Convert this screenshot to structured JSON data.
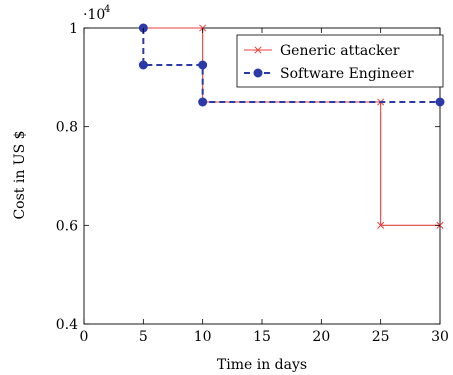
{
  "chart_data": {
    "type": "line",
    "xlabel": "Time in days",
    "ylabel": "Cost in US $",
    "y_multiplier": "·10",
    "y_multiplier_exp": "4",
    "xlim": [
      0,
      30
    ],
    "ylim": [
      0.4,
      1.0
    ],
    "x_ticks": [
      0,
      5,
      10,
      15,
      20,
      25,
      30
    ],
    "x_tick_labels": [
      "0",
      "5",
      "10",
      "15",
      "20",
      "25",
      "30"
    ],
    "y_ticks": [
      0.4,
      0.6,
      0.8,
      1.0
    ],
    "y_tick_labels": [
      "0.4",
      "0.6",
      "0.8",
      "1"
    ],
    "legend_position": "top-right",
    "grid": false,
    "series": [
      {
        "name": "Generic attacker",
        "color": "#e8413c",
        "marker": "x",
        "dashed": false,
        "x": [
          5,
          10,
          10,
          25,
          25,
          30
        ],
        "y": [
          1.0,
          1.0,
          0.85,
          0.85,
          0.6,
          0.6
        ]
      },
      {
        "name": "Software Engineer",
        "color": "#2b3aa8",
        "marker": "circle",
        "dashed": true,
        "x": [
          5,
          5,
          10,
          10,
          30
        ],
        "y": [
          1.0,
          0.925,
          0.925,
          0.85,
          0.85
        ]
      }
    ]
  }
}
